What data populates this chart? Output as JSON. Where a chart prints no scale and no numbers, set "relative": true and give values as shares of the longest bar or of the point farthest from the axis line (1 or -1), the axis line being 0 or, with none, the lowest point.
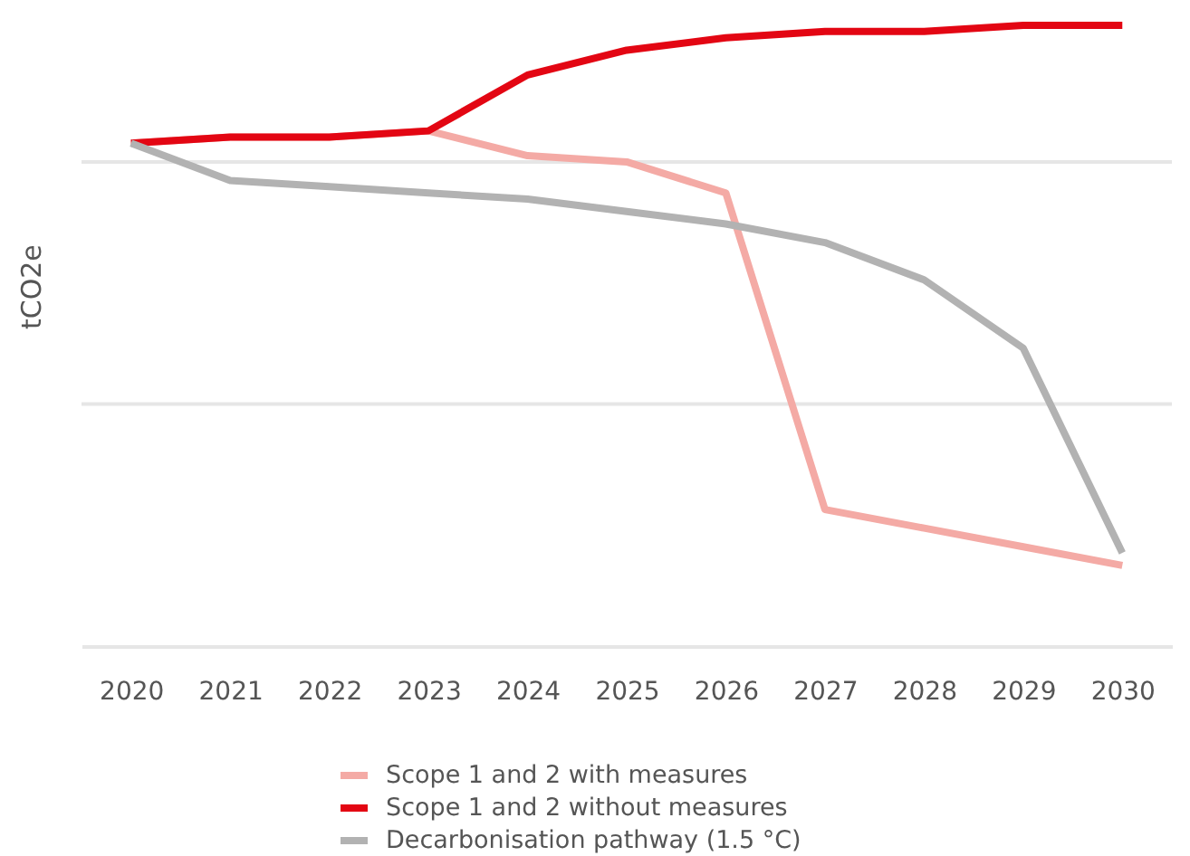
{
  "chart_data": {
    "type": "line",
    "ylabel": "tCO2e",
    "relative": true,
    "categories": [
      "2020",
      "2021",
      "2022",
      "2023",
      "2024",
      "2025",
      "2026",
      "2027",
      "2028",
      "2029",
      "2030"
    ],
    "series": [
      {
        "name": "Scope 1 and 2 with measures",
        "color": "#f4aaa5",
        "values": [
          0.81,
          0.82,
          0.82,
          0.83,
          0.79,
          0.78,
          0.73,
          0.22,
          0.19,
          0.16,
          0.13
        ]
      },
      {
        "name": "Scope 1 and 2 without measures",
        "color": "#e30613",
        "values": [
          0.81,
          0.82,
          0.82,
          0.83,
          0.92,
          0.96,
          0.98,
          0.99,
          0.99,
          1.0,
          1.0
        ]
      },
      {
        "name": "Decarbonisation pathway (1.5 °C)",
        "color": "#b2b2b2",
        "values": [
          0.81,
          0.75,
          0.74,
          0.73,
          0.72,
          0.7,
          0.68,
          0.65,
          0.59,
          0.48,
          0.15
        ]
      }
    ],
    "ref_lines": [
      {
        "axis": "y",
        "value": 0.39,
        "color": "#e6e6e6"
      },
      {
        "axis": "y",
        "value": 0.78,
        "color": "#e6e6e6"
      }
    ],
    "legend": "bottom",
    "tick_labels": "x",
    "line_style": "solid"
  }
}
